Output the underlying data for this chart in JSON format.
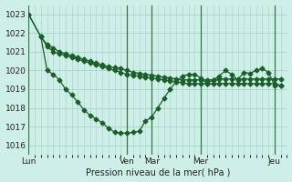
{
  "background_color": "#ceeee8",
  "grid_color": "#aad8cc",
  "line_color": "#1a5e2a",
  "xlabel": "Pression niveau de la mer( hPa )",
  "ylim": [
    1015.5,
    1023.5
  ],
  "yticks": [
    1016,
    1017,
    1018,
    1019,
    1020,
    1021,
    1022,
    1023
  ],
  "day_labels": [
    "Lun",
    "Ven",
    "Mar",
    "Mer",
    "Jeu"
  ],
  "day_positions": [
    0,
    16,
    20,
    28,
    40
  ],
  "xlim": [
    0,
    42
  ],
  "series1_x": [
    0,
    2,
    3,
    4,
    5,
    6,
    7,
    8,
    9,
    10,
    11,
    12,
    13,
    14,
    15,
    16,
    17,
    18,
    19,
    20,
    21,
    22,
    23,
    24,
    25,
    26,
    27,
    28,
    29,
    30,
    31,
    32,
    33,
    34,
    35,
    36,
    37,
    38,
    39,
    40,
    41
  ],
  "series1_y": [
    1023.0,
    1021.8,
    1021.4,
    1021.2,
    1021.0,
    1020.9,
    1020.8,
    1020.7,
    1020.6,
    1020.5,
    1020.4,
    1020.3,
    1020.2,
    1020.15,
    1020.1,
    1020.0,
    1019.9,
    1019.85,
    1019.8,
    1019.75,
    1019.7,
    1019.65,
    1019.6,
    1019.55,
    1019.5,
    1019.5,
    1019.5,
    1019.5,
    1019.5,
    1019.5,
    1019.55,
    1019.55,
    1019.55,
    1019.55,
    1019.55,
    1019.55,
    1019.55,
    1019.55,
    1019.55,
    1019.55,
    1019.55
  ],
  "series2_x": [
    0,
    2,
    3,
    4,
    5,
    6,
    7,
    8,
    9,
    10,
    11,
    12,
    13,
    14,
    15,
    16,
    17,
    18,
    19,
    20,
    21,
    22,
    23,
    24,
    25,
    26,
    27,
    28,
    29,
    30,
    31,
    32,
    33,
    34,
    35,
    36,
    37,
    38,
    39,
    40,
    41
  ],
  "series2_y": [
    1023.0,
    1021.8,
    1021.3,
    1021.0,
    1020.9,
    1020.8,
    1020.7,
    1020.6,
    1020.5,
    1020.4,
    1020.3,
    1020.2,
    1020.1,
    1020.0,
    1019.9,
    1019.8,
    1019.75,
    1019.7,
    1019.65,
    1019.6,
    1019.55,
    1019.5,
    1019.45,
    1019.4,
    1019.35,
    1019.3,
    1019.3,
    1019.3,
    1019.3,
    1019.3,
    1019.3,
    1019.3,
    1019.3,
    1019.3,
    1019.3,
    1019.3,
    1019.3,
    1019.3,
    1019.3,
    1019.3,
    1019.2
  ],
  "series3_x": [
    2,
    3,
    4,
    5,
    6,
    7,
    8,
    9,
    10,
    11,
    12,
    13,
    14,
    15,
    16,
    17,
    18,
    19,
    20,
    21,
    22,
    23,
    24,
    25,
    26,
    27,
    28,
    29,
    30,
    31,
    32,
    33,
    34,
    35,
    36,
    37,
    38,
    39,
    40,
    41
  ],
  "series3_y": [
    1021.8,
    1020.0,
    1019.8,
    1019.5,
    1019.0,
    1018.7,
    1018.3,
    1017.9,
    1017.6,
    1017.4,
    1017.2,
    1016.9,
    1016.7,
    1016.65,
    1016.65,
    1016.7,
    1016.75,
    1017.3,
    1017.5,
    1018.0,
    1018.5,
    1019.0,
    1019.4,
    1019.7,
    1019.8,
    1019.8,
    1019.6,
    1019.3,
    1019.5,
    1019.7,
    1020.0,
    1019.8,
    1019.5,
    1019.9,
    1019.85,
    1020.0,
    1020.1,
    1019.9,
    1019.2,
    1019.2
  ]
}
